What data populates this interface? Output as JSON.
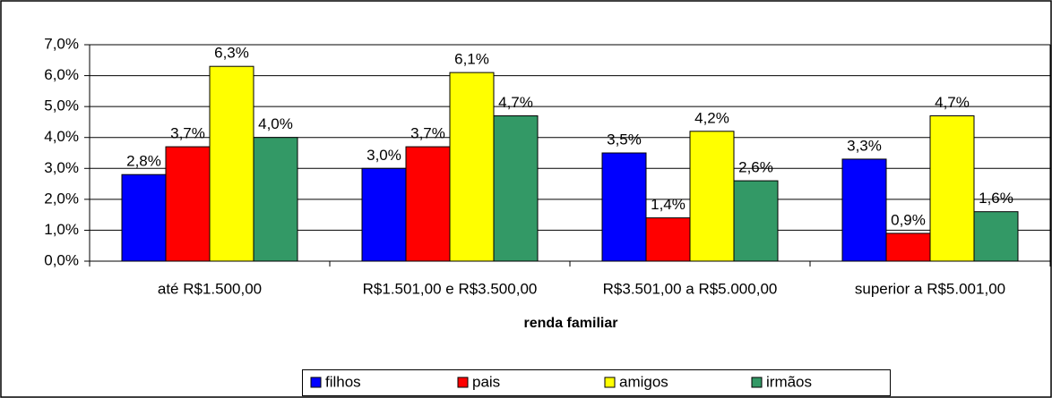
{
  "chart_data": {
    "type": "bar",
    "x_label": "renda familiar",
    "categories": [
      "até R$1.500,00",
      "R$1.501,00 e R$3.500,00",
      "R$3.501,00 a R$5.000,00",
      "superior a R$5.001,00"
    ],
    "series": [
      {
        "name": "filhos",
        "color": "#0000ff",
        "values": [
          2.8,
          3.0,
          3.5,
          3.3
        ],
        "value_labels": [
          "2,8%",
          "3,0%",
          "3,5%",
          "3,3%"
        ]
      },
      {
        "name": "pais",
        "color": "#ff0000",
        "values": [
          3.7,
          3.7,
          1.4,
          0.9
        ],
        "value_labels": [
          "3,7%",
          "3,7%",
          "1,4%",
          "0,9%"
        ]
      },
      {
        "name": "amigos",
        "color": "#ffff00",
        "values": [
          6.3,
          6.1,
          4.2,
          4.7
        ],
        "value_labels": [
          "6,3%",
          "6,1%",
          "4,2%",
          "4,7%"
        ]
      },
      {
        "name": "irmãos",
        "color": "#339966",
        "values": [
          4.0,
          4.7,
          2.6,
          1.6
        ],
        "value_labels": [
          "4,0%",
          "4,7%",
          "2,6%",
          "1,6%"
        ]
      }
    ],
    "ylim": [
      0,
      7
    ],
    "yticks": [
      {
        "value": 0,
        "label": "0,0%"
      },
      {
        "value": 1,
        "label": "1,0%"
      },
      {
        "value": 2,
        "label": "2,0%"
      },
      {
        "value": 3,
        "label": "3,0%"
      },
      {
        "value": 4,
        "label": "4,0%"
      },
      {
        "value": 5,
        "label": "5,0%"
      },
      {
        "value": 6,
        "label": "6,0%"
      },
      {
        "value": 7,
        "label": "7,0%"
      }
    ],
    "grid": true,
    "legend": "bottom"
  }
}
